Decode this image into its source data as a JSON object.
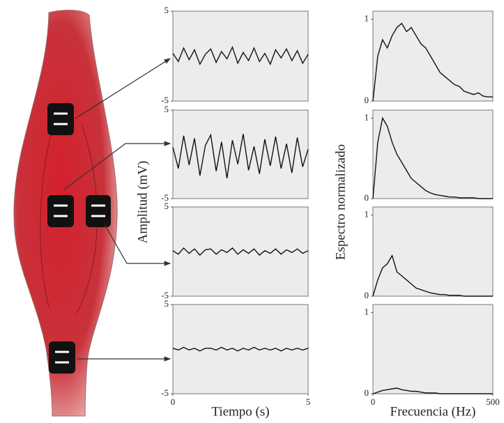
{
  "chart_data": [
    {
      "type": "line",
      "color": "#111111",
      "xlim": [
        0,
        5
      ],
      "ylim": [
        -5,
        5
      ],
      "yticks": [
        5,
        -5
      ],
      "x": [
        0,
        0.2,
        0.4,
        0.6,
        0.8,
        1,
        1.2,
        1.4,
        1.6,
        1.8,
        2,
        2.2,
        2.4,
        2.6,
        2.8,
        3,
        3.2,
        3.4,
        3.6,
        3.8,
        4,
        4.2,
        4.4,
        4.6,
        4.8,
        5
      ],
      "values": [
        0.3,
        -0.6,
        0.9,
        -0.4,
        0.7,
        -0.9,
        0.2,
        0.8,
        -0.7,
        0.5,
        -0.3,
        1.0,
        -0.8,
        0.4,
        -0.5,
        0.9,
        -0.6,
        0.3,
        -0.9,
        0.7,
        -0.2,
        0.8,
        -0.5,
        0.6,
        -0.8,
        0.2
      ]
    },
    {
      "type": "line",
      "color": "#111111",
      "xlim": [
        0,
        5
      ],
      "ylim": [
        -5,
        5
      ],
      "yticks": [
        5,
        -5
      ],
      "ylabel": "Amplitud (mV)",
      "x": [
        0,
        0.2,
        0.4,
        0.6,
        0.8,
        1,
        1.2,
        1.4,
        1.6,
        1.8,
        2,
        2.2,
        2.4,
        2.6,
        2.8,
        3,
        3.2,
        3.4,
        3.6,
        3.8,
        4,
        4.2,
        4.4,
        4.6,
        4.8,
        5
      ],
      "values": [
        0.8,
        -1.6,
        2.1,
        -1.2,
        1.8,
        -2.4,
        1.0,
        2.2,
        -1.9,
        1.4,
        -2.7,
        1.6,
        -1.1,
        2.3,
        -1.8,
        0.9,
        -2.2,
        1.7,
        -1.3,
        2.0,
        -1.6,
        1.2,
        -2.1,
        1.9,
        -1.4,
        0.6
      ]
    },
    {
      "type": "line",
      "color": "#111111",
      "xlim": [
        0,
        5
      ],
      "ylim": [
        -5,
        5
      ],
      "yticks": [
        5,
        -5
      ],
      "x": [
        0,
        0.2,
        0.4,
        0.6,
        0.8,
        1,
        1.2,
        1.4,
        1.6,
        1.8,
        2,
        2.2,
        2.4,
        2.6,
        2.8,
        3,
        3.2,
        3.4,
        3.6,
        3.8,
        4,
        4.2,
        4.4,
        4.6,
        4.8,
        5
      ],
      "values": [
        0.1,
        -0.3,
        0.4,
        -0.2,
        0.3,
        -0.4,
        0.2,
        0.3,
        -0.3,
        0.2,
        -0.1,
        0.4,
        -0.3,
        0.2,
        -0.2,
        0.3,
        -0.4,
        0.1,
        -0.2,
        0.3,
        -0.3,
        0.2,
        -0.1,
        0.3,
        -0.2,
        0.1
      ]
    },
    {
      "type": "line",
      "color": "#111111",
      "xlim": [
        0,
        5
      ],
      "ylim": [
        -5,
        5
      ],
      "yticks": [
        5,
        -5
      ],
      "xticks": [
        0,
        5
      ],
      "xlabel": "Tiempo (s)",
      "x": [
        0,
        0.2,
        0.4,
        0.6,
        0.8,
        1,
        1.2,
        1.4,
        1.6,
        1.8,
        2,
        2.2,
        2.4,
        2.6,
        2.8,
        3,
        3.2,
        3.4,
        3.6,
        3.8,
        4,
        4.2,
        4.4,
        4.6,
        4.8,
        5
      ],
      "values": [
        0.1,
        -0.1,
        0.2,
        -0.1,
        0.1,
        -0.2,
        0.1,
        0.1,
        -0.1,
        0.2,
        -0.1,
        0.1,
        -0.2,
        0.1,
        -0.1,
        0.2,
        -0.1,
        0.1,
        -0.1,
        0.1,
        -0.2,
        0.1,
        -0.1,
        0.1,
        -0.1,
        0.1
      ]
    },
    {
      "type": "line",
      "color": "#111111",
      "xlim": [
        0,
        500
      ],
      "ylim": [
        0,
        1.1
      ],
      "yticks": [
        1,
        0
      ],
      "x": [
        0,
        20,
        40,
        60,
        80,
        100,
        120,
        140,
        160,
        180,
        200,
        220,
        240,
        260,
        280,
        300,
        320,
        340,
        360,
        380,
        400,
        420,
        440,
        460,
        480,
        500
      ],
      "values": [
        0,
        0.55,
        0.75,
        0.65,
        0.8,
        0.9,
        0.95,
        0.85,
        0.9,
        0.8,
        0.7,
        0.65,
        0.55,
        0.45,
        0.35,
        0.3,
        0.25,
        0.2,
        0.18,
        0.12,
        0.1,
        0.08,
        0.1,
        0.06,
        0.05,
        0.05
      ]
    },
    {
      "type": "line",
      "color": "#111111",
      "xlim": [
        0,
        500
      ],
      "ylim": [
        0,
        1.1
      ],
      "yticks": [
        1,
        0
      ],
      "ylabel": "Espectro normalizado",
      "x": [
        0,
        20,
        40,
        60,
        80,
        100,
        120,
        140,
        160,
        180,
        200,
        220,
        240,
        260,
        280,
        300,
        320,
        340,
        360,
        380,
        400,
        420,
        440,
        460,
        480,
        500
      ],
      "values": [
        0,
        0.7,
        1.0,
        0.9,
        0.7,
        0.55,
        0.45,
        0.35,
        0.25,
        0.2,
        0.15,
        0.1,
        0.07,
        0.05,
        0.04,
        0.03,
        0.02,
        0.02,
        0.01,
        0.01,
        0.01,
        0.01,
        0,
        0,
        0,
        0
      ]
    },
    {
      "type": "line",
      "color": "#111111",
      "xlim": [
        0,
        500
      ],
      "ylim": [
        0,
        1.1
      ],
      "yticks": [
        1,
        0
      ],
      "x": [
        0,
        20,
        40,
        60,
        80,
        100,
        120,
        140,
        160,
        180,
        200,
        220,
        240,
        260,
        280,
        300,
        320,
        340,
        360,
        380,
        400,
        420,
        440,
        460,
        480,
        500
      ],
      "values": [
        0,
        0.2,
        0.35,
        0.4,
        0.5,
        0.3,
        0.25,
        0.2,
        0.15,
        0.1,
        0.08,
        0.06,
        0.04,
        0.03,
        0.02,
        0.02,
        0.01,
        0.01,
        0.01,
        0,
        0,
        0,
        0,
        0,
        0,
        0
      ]
    },
    {
      "type": "line",
      "color": "#111111",
      "xlim": [
        0,
        500
      ],
      "ylim": [
        0,
        1.1
      ],
      "yticks": [
        1,
        0
      ],
      "xticks": [
        0,
        500
      ],
      "xlabel": "Frecuencia (Hz)",
      "x": [
        0,
        20,
        40,
        60,
        80,
        100,
        120,
        140,
        160,
        180,
        200,
        220,
        240,
        260,
        280,
        300,
        320,
        340,
        360,
        380,
        400,
        420,
        440,
        460,
        480,
        500
      ],
      "values": [
        0,
        0.02,
        0.04,
        0.05,
        0.06,
        0.07,
        0.05,
        0.04,
        0.03,
        0.03,
        0.02,
        0.01,
        0.01,
        0.01,
        0,
        0,
        0,
        0,
        0,
        0,
        0,
        0,
        0,
        0,
        0,
        0
      ]
    }
  ]
}
